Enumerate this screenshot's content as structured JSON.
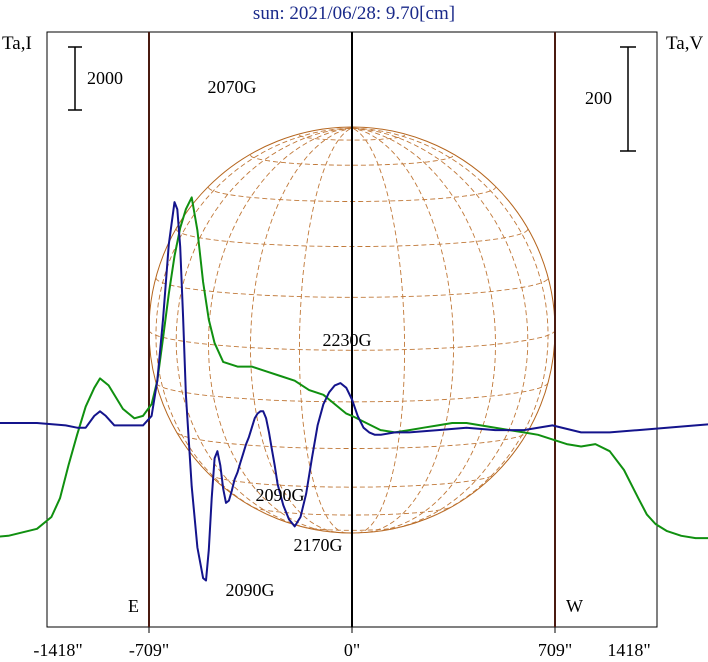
{
  "title": "sun: 2021/06/28: 9.70[cm]",
  "chart_data": {
    "type": "line",
    "title": "sun: 2021/06/28: 9.70[cm]",
    "x_ticks": [
      "-1418\"",
      "-709\"",
      "0\"",
      "709\"",
      "1418\""
    ],
    "x_tick_values": [
      -1418,
      -709,
      0,
      709,
      1418
    ],
    "xlim": [
      -1418,
      1418
    ],
    "left_axis_label": "Ta,I",
    "right_axis_label": "Ta,V",
    "left_scale_bar": "2000",
    "right_scale_bar": "200",
    "limb_markers": [
      {
        "label": "E",
        "x": -1418
      },
      {
        "label": "W",
        "x": 1418
      }
    ],
    "vertical_lines_x": [
      -709,
      0,
      709
    ],
    "annotations": [
      "2070G",
      "2230G",
      "2090G",
      "2090G",
      "2170G"
    ],
    "series": [
      {
        "color": "#109010",
        "x": [
          -1418,
          -1300,
          -1200,
          -1100,
          -1050,
          -1020,
          -990,
          -960,
          -930,
          -900,
          -880,
          -850,
          -800,
          -760,
          -730,
          -700,
          -680,
          -660,
          -640,
          -620,
          -600,
          -580,
          -560,
          -540,
          -520,
          -500,
          -480,
          -450,
          -400,
          -350,
          -300,
          -250,
          -200,
          -150,
          -100,
          -70,
          -40,
          -20,
          0,
          50,
          100,
          150,
          200,
          250,
          300,
          350,
          400,
          450,
          500,
          550,
          600,
          650,
          700,
          750,
          800,
          850,
          900,
          950,
          1000,
          1030,
          1060,
          1100,
          1150,
          1200,
          1250,
          1300,
          1350,
          1418
        ],
        "values": [
          -5.0,
          -4.9,
          -4.8,
          -4.5,
          -4.0,
          -3.2,
          -1.8,
          -0.5,
          0.7,
          1.5,
          1.9,
          1.6,
          0.6,
          0.2,
          0.3,
          0.8,
          1.8,
          3.6,
          5.5,
          7.1,
          8.3,
          9.1,
          9.6,
          8.2,
          6.0,
          4.4,
          3.4,
          2.6,
          2.4,
          2.4,
          2.2,
          2.0,
          1.8,
          1.4,
          1.2,
          0.9,
          0.6,
          0.4,
          0.3,
          0.0,
          -0.3,
          -0.4,
          -0.3,
          -0.2,
          -0.1,
          0.0,
          0.0,
          -0.1,
          -0.2,
          -0.3,
          -0.4,
          -0.5,
          -0.7,
          -0.9,
          -1.0,
          -0.9,
          -1.2,
          -2.0,
          -3.2,
          -3.9,
          -4.3,
          -4.6,
          -4.8,
          -4.9,
          -4.9,
          -4.9,
          -5.0,
          -5.0
        ]
      },
      {
        "color": "#14148c",
        "x": [
          -1418,
          -1300,
          -1200,
          -1100,
          -1000,
          -960,
          -930,
          -900,
          -880,
          -860,
          -830,
          -800,
          -760,
          -730,
          -700,
          -680,
          -660,
          -640,
          -620,
          -610,
          -600,
          -590,
          -580,
          -560,
          -540,
          -520,
          -510,
          -500,
          -490,
          -480,
          -470,
          -460,
          -450,
          -440,
          -430,
          -420,
          -410,
          -400,
          -390,
          -380,
          -370,
          -360,
          -350,
          -340,
          -330,
          -320,
          -310,
          -300,
          -290,
          -280,
          -270,
          -260,
          -240,
          -220,
          -200,
          -180,
          -160,
          -140,
          -120,
          -100,
          -80,
          -60,
          -40,
          -20,
          0,
          20,
          40,
          60,
          80,
          100,
          150,
          200,
          300,
          400,
          500,
          600,
          700,
          800,
          900,
          1000,
          1100,
          1200,
          1300,
          1418
        ],
        "values": [
          0.0,
          0.0,
          0.0,
          0.0,
          -0.1,
          -0.2,
          -0.2,
          0.3,
          0.5,
          0.3,
          -0.1,
          -0.1,
          -0.1,
          -0.1,
          0.3,
          1.8,
          4.4,
          7.6,
          9.4,
          9.1,
          7.5,
          4.5,
          1.2,
          -2.7,
          -5.3,
          -6.6,
          -6.7,
          -5.4,
          -3.2,
          -1.5,
          -1.2,
          -1.8,
          -2.8,
          -3.4,
          -3.3,
          -2.9,
          -2.4,
          -2.1,
          -1.7,
          -1.3,
          -0.9,
          -0.6,
          -0.2,
          0.2,
          0.4,
          0.5,
          0.5,
          0.2,
          -0.4,
          -1.1,
          -1.8,
          -2.6,
          -3.5,
          -4.1,
          -4.4,
          -4.0,
          -3.0,
          -1.5,
          -0.1,
          0.8,
          1.3,
          1.6,
          1.7,
          1.5,
          1.0,
          0.3,
          -0.2,
          -0.4,
          -0.5,
          -0.5,
          -0.4,
          -0.4,
          -0.3,
          -0.2,
          -0.3,
          -0.3,
          -0.1,
          -0.4,
          -0.4,
          -0.3,
          -0.2,
          -0.1,
          0.0,
          0.0
        ]
      }
    ]
  }
}
